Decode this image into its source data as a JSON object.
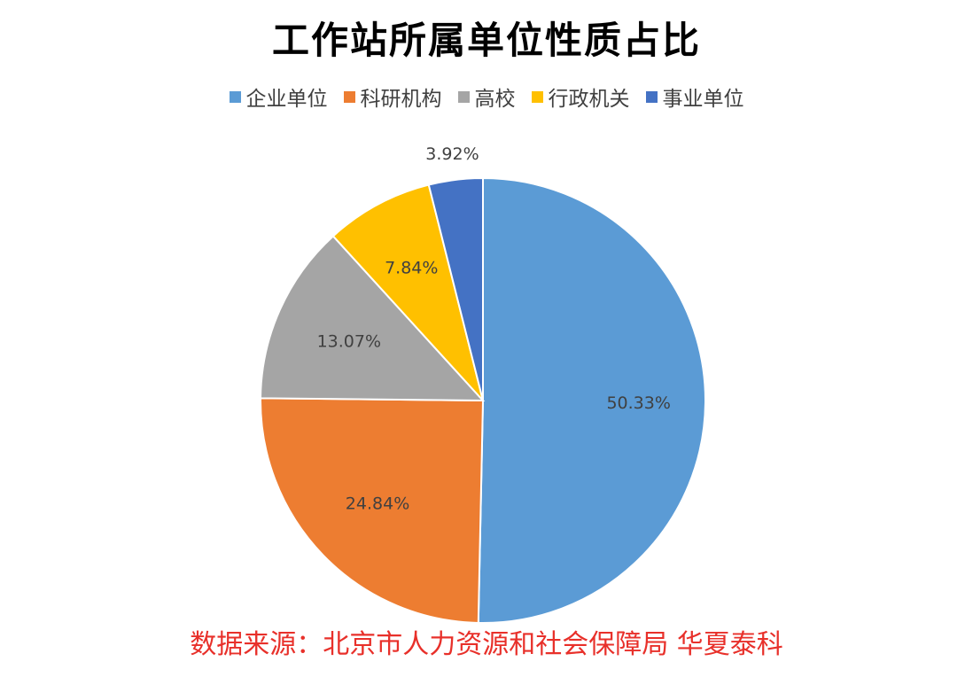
{
  "chart_data": {
    "type": "pie",
    "title": "工作站所属单位性质占比",
    "categories": [
      "企业单位",
      "科研机构",
      "高校",
      "行政机关",
      "事业单位"
    ],
    "values": [
      50.33,
      24.84,
      13.07,
      7.84,
      3.92
    ],
    "data_labels": [
      "50.33%",
      "24.84%",
      "13.07%",
      "7.84%",
      "3.92%"
    ],
    "colors": [
      "#5b9bd5",
      "#ed7d31",
      "#a5a5a5",
      "#ffc000",
      "#4472c4"
    ],
    "legend_position": "top",
    "start": "12 o'clock",
    "direction": "clockwise"
  },
  "source_text": "数据来源：北京市人力资源和社会保障局 华夏泰科"
}
